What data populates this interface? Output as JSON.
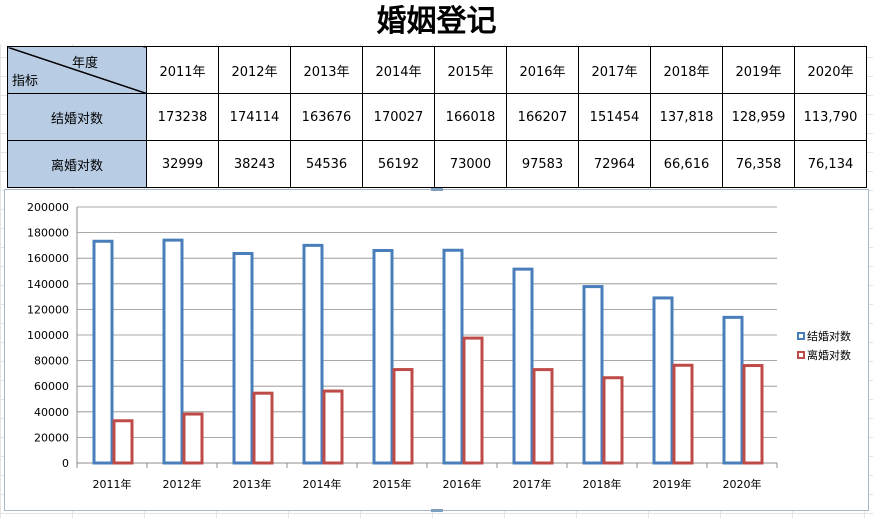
{
  "title": "婚姻登记",
  "table": {
    "corner_top": "年度",
    "corner_bottom": "指标",
    "years": [
      "2011年",
      "2012年",
      "2013年",
      "2014年",
      "2015年",
      "2016年",
      "2017年",
      "2018年",
      "2019年",
      "2020年"
    ],
    "rows": [
      {
        "label": "结婚对数",
        "values": [
          "173238",
          "174114",
          "163676",
          "170027",
          "166018",
          "166207",
          "151454",
          "137,818",
          "128,959",
          "113,790"
        ]
      },
      {
        "label": "离婚对数",
        "values": [
          "32999",
          "38243",
          "54536",
          "56192",
          "73000",
          "97583",
          "72964",
          "66,616",
          "76,358",
          "76,134"
        ]
      }
    ]
  },
  "chart_data": {
    "type": "bar",
    "categories": [
      "2011年",
      "2012年",
      "2013年",
      "2014年",
      "2015年",
      "2016年",
      "2017年",
      "2018年",
      "2019年",
      "2020年"
    ],
    "series": [
      {
        "name": "结婚对数",
        "values": [
          173238,
          174114,
          163676,
          170027,
          166018,
          166207,
          151454,
          137818,
          128959,
          113790
        ],
        "color": "#4a7ebb"
      },
      {
        "name": "离婚对数",
        "values": [
          32999,
          38243,
          54536,
          56192,
          73000,
          97583,
          72964,
          66616,
          76358,
          76134
        ],
        "color": "#be4b48"
      }
    ],
    "ylim": [
      0,
      200000
    ],
    "yticks": [
      0,
      20000,
      40000,
      60000,
      80000,
      100000,
      120000,
      140000,
      160000,
      180000,
      200000
    ],
    "grid": true,
    "legend": "right"
  }
}
